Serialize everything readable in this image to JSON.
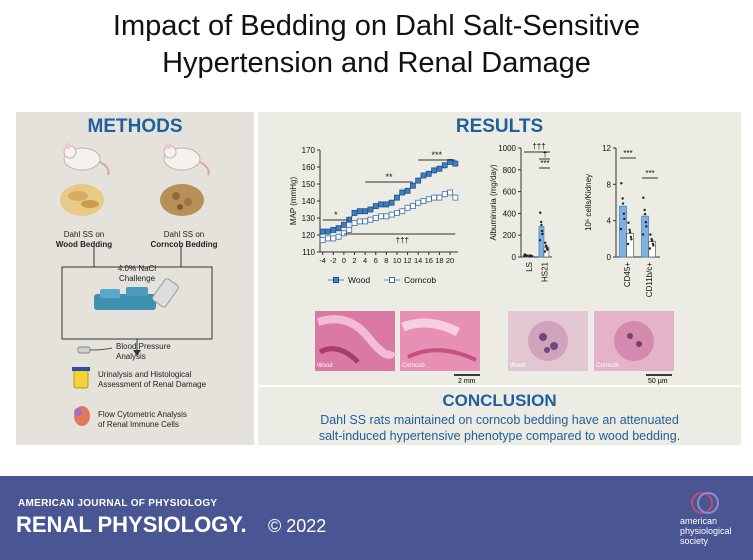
{
  "title": {
    "line1": "Impact of Bedding on Dahl Salt-Sensitive",
    "line2": "Hypertension and Renal Damage"
  },
  "methods": {
    "heading": "METHODS",
    "group_wood": {
      "line1": "Dahl SS on",
      "line2": "Wood Bedding"
    },
    "group_corncob": {
      "line1": "Dahl SS on",
      "line2": "Corncob Bedding"
    },
    "challenge": {
      "line1": "4.0% NaCl",
      "line2": "Challenge"
    },
    "steps": [
      {
        "line1": "Blood Pressure",
        "line2": "Analysis"
      },
      {
        "line1": "Urinalysis and Histological",
        "line2": "Assessment of Renal Damage"
      },
      {
        "line1": "Flow Cytometric Analysis",
        "line2": "of Renal Immune Cells"
      }
    ]
  },
  "results": {
    "heading": "RESULTS",
    "map_chart": {
      "ylabel": "MAP (mmHg)",
      "yticks": [
        "170",
        "160",
        "150",
        "140",
        "130",
        "120",
        "110"
      ],
      "xticks": [
        "-4",
        "-2",
        "0",
        "2",
        "4",
        "6",
        "8",
        "10",
        "12",
        "14",
        "16",
        "18",
        "20"
      ],
      "sig_top": "***",
      "sig_mid": "**",
      "sig_left": "*",
      "sig_bottom": "†††",
      "legend_wood": "Wood",
      "legend_corncob": "Corncob"
    },
    "alb_chart": {
      "ylabel": "Albuminuria (mg/day)",
      "yticks": [
        "1000",
        "800",
        "600",
        "400",
        "200",
        "0"
      ],
      "xticks": [
        "LS",
        "HS21"
      ],
      "sig1": "†††",
      "sig2": "†",
      "sig3": "***"
    },
    "immune_chart": {
      "ylabel": "10⁶ cells/Kidney",
      "yticks": [
        "12",
        "8",
        "4",
        "0"
      ],
      "xticks": [
        "CD45+",
        "CD11b/c+"
      ],
      "sig1": "***",
      "sig2": "***"
    },
    "histology": {
      "label_wood_1": "Wood",
      "label_corncob_1": "Corncob",
      "scale_1": "2 mm",
      "label_wood_2": "Wood",
      "label_corncob_2": "Corncob",
      "scale_2": "50 µm"
    }
  },
  "conclusion": {
    "heading": "CONCLUSION",
    "line1": "Dahl SS rats maintained on corncob bedding have an attenuated",
    "line2": "salt-induced hypertensive phenotype compared to wood bedding."
  },
  "footer": {
    "journal_top": "AMERICAN JOURNAL OF PHYSIOLOGY",
    "journal_main": "RENAL PHYSIOLOGY.",
    "copyright": "© 2022",
    "society_line1": "american",
    "society_line2": "physiological",
    "society_line3": "society"
  },
  "chart_data": [
    {
      "type": "line",
      "ylabel": "MAP (mmHg)",
      "ylim": [
        110,
        170
      ],
      "x": [
        -4,
        -3,
        -2,
        -1,
        0,
        1,
        2,
        3,
        4,
        5,
        6,
        7,
        8,
        9,
        10,
        11,
        12,
        13,
        14,
        15,
        16,
        17,
        18,
        19,
        20,
        21
      ],
      "series": [
        {
          "name": "Wood",
          "values": [
            122,
            122,
            123,
            124,
            126,
            129,
            133,
            134,
            134,
            135,
            137,
            138,
            138,
            139,
            142,
            145,
            146,
            149,
            152,
            155,
            156,
            158,
            159,
            161,
            163,
            162
          ]
        },
        {
          "name": "Corncob",
          "values": [
            117,
            118,
            118,
            119,
            121,
            123,
            127,
            128,
            128,
            129,
            130,
            131,
            131,
            132,
            133,
            134,
            136,
            137,
            139,
            140,
            141,
            142,
            142,
            144,
            145,
            142
          ]
        }
      ]
    },
    {
      "type": "bar",
      "ylabel": "Albuminuria (mg/day)",
      "ylim": [
        0,
        1000
      ],
      "categories": [
        "LS",
        "HS21"
      ],
      "series": [
        {
          "name": "Wood",
          "values": [
            15,
            280
          ]
        },
        {
          "name": "Corncob",
          "values": [
            10,
            90
          ]
        }
      ]
    },
    {
      "type": "bar",
      "ylabel": "10⁶ cells/Kidney",
      "ylim": [
        0,
        12
      ],
      "categories": [
        "CD45+",
        "CD11b/c+"
      ],
      "series": [
        {
          "name": "Wood",
          "values": [
            5.6,
            4.5
          ]
        },
        {
          "name": "Corncob",
          "values": [
            2.6,
            1.7
          ]
        }
      ]
    }
  ]
}
